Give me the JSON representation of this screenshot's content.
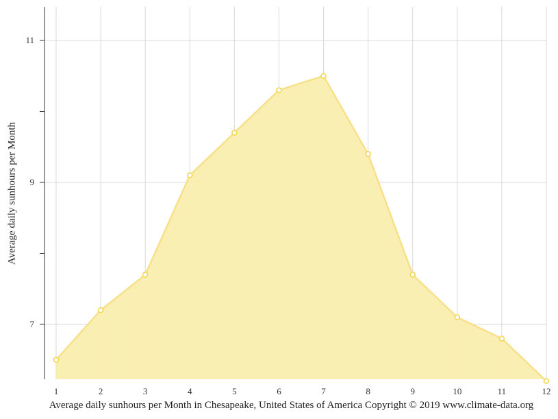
{
  "chart_data": {
    "type": "area",
    "title": "Average daily sunhours per Month in Chesapeake, United States of America",
    "xlabel": "",
    "ylabel": "Average daily sunhours per Month",
    "categories": [
      "1",
      "2",
      "3",
      "4",
      "5",
      "6",
      "7",
      "8",
      "9",
      "10",
      "11",
      "12"
    ],
    "series": [
      {
        "name": "Average daily sunhours",
        "values": [
          6.5,
          7.2,
          7.7,
          9.1,
          9.7,
          10.3,
          10.5,
          9.4,
          7.7,
          7.1,
          6.8,
          6.2
        ]
      }
    ],
    "ylim": [
      6.2,
      11.5
    ],
    "yticks": [
      7,
      8,
      9,
      10,
      11
    ],
    "ytick_labels": [
      "7",
      "",
      "9",
      "",
      "11"
    ],
    "grid": true,
    "legend": "none",
    "colors": {
      "fill": "#faeeaf",
      "line": "#f8e08a",
      "marker": "#f5d44a",
      "grid": "#d9d9d9",
      "axis": "#333333"
    }
  },
  "caption": "Average daily sunhours per Month in Chesapeake, United States of America Copyright © 2019 www.climate-data.org",
  "ylabel": "Average daily sunhours per Month"
}
